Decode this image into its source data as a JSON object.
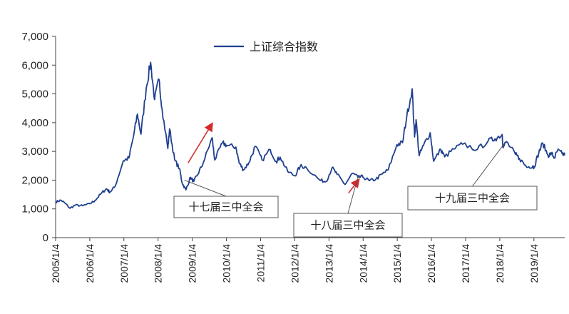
{
  "chart_data": {
    "type": "line",
    "title": "",
    "xlabel": "",
    "ylabel": "",
    "ylim": [
      0,
      7000
    ],
    "y_ticks": [
      "0",
      "1,000",
      "2,000",
      "3,000",
      "4,000",
      "5,000",
      "6,000",
      "7,000"
    ],
    "x_ticks": [
      "2005/1/4",
      "2006/1/4",
      "2007/1/4",
      "2008/1/4",
      "2009/1/4",
      "2010/1/4",
      "2011/1/4",
      "2012/1/4",
      "2013/1/4",
      "2014/1/4",
      "2015/1/4",
      "2016/1/4",
      "2017/1/4",
      "2018/1/4",
      "2019/1/4"
    ],
    "grid": false,
    "legend_position": "top-center",
    "series": [
      {
        "name": "上证综合指数",
        "color": "#1f3f8f",
        "points": [
          [
            "2005-01-04",
            1240
          ],
          [
            "2005-03-01",
            1300
          ],
          [
            "2005-04-15",
            1200
          ],
          [
            "2005-06-06",
            1020
          ],
          [
            "2005-08-01",
            1130
          ],
          [
            "2005-10-20",
            1110
          ],
          [
            "2006-01-04",
            1180
          ],
          [
            "2006-03-01",
            1290
          ],
          [
            "2006-05-10",
            1550
          ],
          [
            "2006-07-01",
            1700
          ],
          [
            "2006-08-07",
            1580
          ],
          [
            "2006-10-01",
            1780
          ],
          [
            "2006-12-29",
            2675
          ],
          [
            "2007-02-27",
            2770
          ],
          [
            "2007-04-15",
            3500
          ],
          [
            "2007-05-29",
            4300
          ],
          [
            "2007-07-05",
            3600
          ],
          [
            "2007-08-31",
            5200
          ],
          [
            "2007-10-16",
            6100
          ],
          [
            "2007-11-28",
            4800
          ],
          [
            "2008-01-14",
            5500
          ],
          [
            "2008-02-15",
            4500
          ],
          [
            "2008-04-18",
            3100
          ],
          [
            "2008-05-06",
            3780
          ],
          [
            "2008-06-30",
            2700
          ],
          [
            "2008-08-20",
            2400
          ],
          [
            "2008-09-18",
            1900
          ],
          [
            "2008-10-28",
            1664
          ],
          [
            "2008-12-15",
            2100
          ],
          [
            "2009-01-20",
            1950
          ],
          [
            "2009-03-03",
            2200
          ],
          [
            "2009-05-01",
            2600
          ],
          [
            "2009-08-04",
            3478
          ],
          [
            "2009-09-01",
            2700
          ],
          [
            "2009-11-24",
            3300
          ],
          [
            "2010-01-15",
            3200
          ],
          [
            "2010-04-15",
            3150
          ],
          [
            "2010-05-20",
            2600
          ],
          [
            "2010-07-05",
            2360
          ],
          [
            "2010-08-31",
            2600
          ],
          [
            "2010-11-08",
            3180
          ],
          [
            "2011-01-20",
            2700
          ],
          [
            "2011-04-18",
            3060
          ],
          [
            "2011-06-20",
            2650
          ],
          [
            "2011-08-01",
            2800
          ],
          [
            "2011-10-21",
            2300
          ],
          [
            "2012-01-06",
            2150
          ],
          [
            "2012-03-02",
            2480
          ],
          [
            "2012-05-04",
            2450
          ],
          [
            "2012-09-26",
            2000
          ],
          [
            "2012-12-04",
            1949
          ],
          [
            "2013-02-06",
            2430
          ],
          [
            "2013-04-01",
            2200
          ],
          [
            "2013-06-25",
            1849
          ],
          [
            "2013-09-12",
            2240
          ],
          [
            "2013-11-12",
            2100
          ],
          [
            "2013-12-31",
            2116
          ],
          [
            "2014-03-11",
            1980
          ],
          [
            "2014-05-20",
            2030
          ],
          [
            "2014-07-30",
            2220
          ],
          [
            "2014-09-30",
            2360
          ],
          [
            "2014-12-31",
            3235
          ],
          [
            "2015-03-01",
            3300
          ],
          [
            "2015-04-15",
            4200
          ],
          [
            "2015-06-12",
            5178
          ],
          [
            "2015-07-08",
            3500
          ],
          [
            "2015-07-24",
            4100
          ],
          [
            "2015-08-26",
            2850
          ],
          [
            "2015-10-10",
            3200
          ],
          [
            "2015-12-22",
            3650
          ],
          [
            "2016-01-28",
            2655
          ],
          [
            "2016-04-13",
            3070
          ],
          [
            "2016-05-25",
            2810
          ],
          [
            "2016-09-01",
            3080
          ],
          [
            "2016-12-01",
            3250
          ],
          [
            "2017-05-10",
            3070
          ],
          [
            "2017-09-01",
            3360
          ],
          [
            "2017-11-14",
            3440
          ],
          [
            "2018-01-29",
            3587
          ],
          [
            "2018-02-09",
            3130
          ],
          [
            "2018-03-14",
            3340
          ],
          [
            "2018-06-20",
            2900
          ],
          [
            "2018-08-01",
            2760
          ],
          [
            "2018-10-19",
            2450
          ],
          [
            "2018-12-25",
            2500
          ],
          [
            "2019-01-04",
            2440
          ],
          [
            "2019-02-25",
            2960
          ],
          [
            "2019-04-08",
            3288
          ],
          [
            "2019-06-03",
            2860
          ],
          [
            "2019-07-10",
            2930
          ],
          [
            "2019-08-12",
            2770
          ],
          [
            "2019-09-12",
            3030
          ],
          [
            "2019-10-31",
            2930
          ],
          [
            "2019-11-29",
            2870
          ]
        ]
      }
    ],
    "annotations": [
      {
        "label": "十七届三中全会",
        "date": "2008-10-12",
        "value": 2000
      },
      {
        "label": "十八届三中全会",
        "date": "2013-11-12",
        "value": 2140
      },
      {
        "label": "十九届三中全会",
        "date": "2018-02-28",
        "value": 3300
      }
    ],
    "arrows": [
      {
        "from": [
          "2008-11-20",
          2600
        ],
        "to": [
          "2009-08-01",
          3950
        ],
        "color": "#d42a2a"
      },
      {
        "from": [
          "2013-08-01",
          1550
        ],
        "to": [
          "2013-11-15",
          2000
        ],
        "color": "#d42a2a"
      }
    ]
  }
}
